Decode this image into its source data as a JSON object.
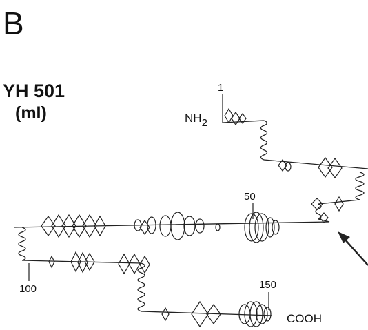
{
  "panel_label": "B",
  "protein": {
    "name": "YH 501",
    "mutant": "(mI)"
  },
  "terminals": {
    "n": "NH",
    "n_sub": "2",
    "c": "COOH"
  },
  "residue_labels": [
    "1",
    "50",
    "100",
    "150"
  ]
}
